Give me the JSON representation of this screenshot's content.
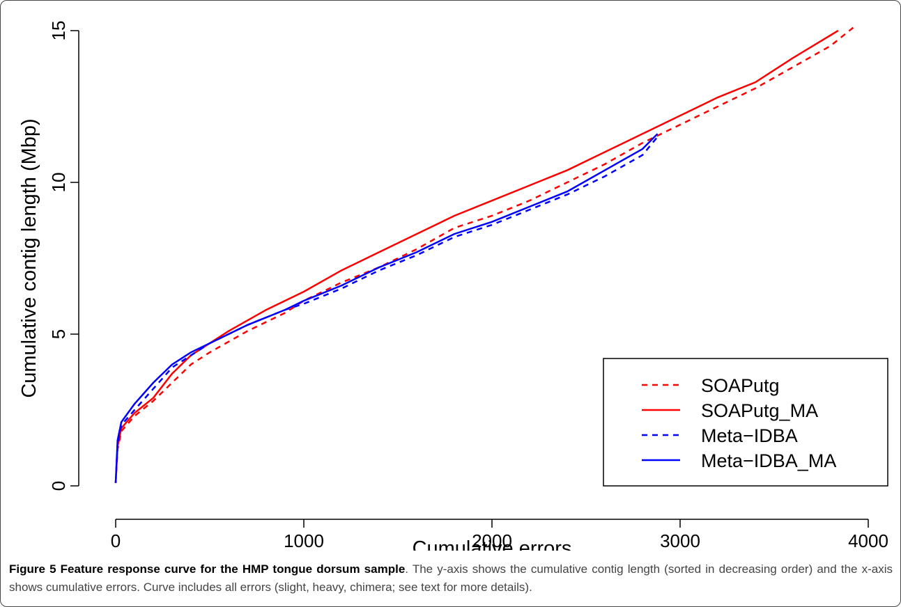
{
  "chart_data": {
    "type": "line",
    "xlabel": "Cumulative errors",
    "ylabel": "Cumulative contig length (Mbp)",
    "xlim": [
      0,
      4000
    ],
    "xticks": [
      0,
      1000,
      2000,
      3000,
      4000
    ],
    "ylim": [
      0,
      15
    ],
    "yticks": [
      0,
      5,
      10,
      15
    ],
    "legend": "bottom-right",
    "series": [
      {
        "name": "SOAPutg",
        "color": "#ff0000",
        "line_style": "dashed",
        "x": [
          0,
          10,
          30,
          100,
          200,
          300,
          400,
          500,
          700,
          900,
          1000,
          1200,
          1400,
          1600,
          1800,
          2000,
          2200,
          2400,
          2600,
          2800,
          3000,
          3200,
          3400,
          3600,
          3800,
          3920
        ],
        "values": [
          0.1,
          1.2,
          1.8,
          2.3,
          2.8,
          3.4,
          4.0,
          4.4,
          5.1,
          5.7,
          6.1,
          6.7,
          7.2,
          7.8,
          8.5,
          8.9,
          9.4,
          10.0,
          10.6,
          11.3,
          11.9,
          12.5,
          13.1,
          13.8,
          14.5,
          15.1
        ]
      },
      {
        "name": "SOAPutg_MA",
        "color": "#ff0000",
        "line_style": "solid",
        "x": [
          0,
          10,
          30,
          100,
          200,
          300,
          400,
          500,
          600,
          800,
          1000,
          1200,
          1400,
          1600,
          1800,
          2000,
          2200,
          2400,
          2600,
          2800,
          3000,
          3200,
          3400,
          3600,
          3840
        ],
        "values": [
          0.1,
          1.3,
          1.9,
          2.4,
          2.9,
          3.7,
          4.3,
          4.7,
          5.1,
          5.8,
          6.4,
          7.1,
          7.7,
          8.3,
          8.9,
          9.4,
          9.9,
          10.4,
          11.0,
          11.6,
          12.2,
          12.8,
          13.3,
          14.1,
          15.0
        ]
      },
      {
        "name": "Meta−IDBA",
        "color": "#0000ff",
        "line_style": "dashed",
        "x": [
          0,
          10,
          30,
          100,
          200,
          300,
          400,
          500,
          700,
          900,
          1000,
          1200,
          1400,
          1600,
          1800,
          2000,
          2200,
          2400,
          2600,
          2800,
          2880
        ],
        "values": [
          0.1,
          1.4,
          2.0,
          2.5,
          3.2,
          3.9,
          4.3,
          4.7,
          5.3,
          5.8,
          6.0,
          6.5,
          7.1,
          7.6,
          8.2,
          8.6,
          9.1,
          9.6,
          10.2,
          10.9,
          11.5
        ]
      },
      {
        "name": "Meta−IDBA_MA",
        "color": "#0000ff",
        "line_style": "solid",
        "x": [
          0,
          10,
          30,
          100,
          200,
          300,
          400,
          500,
          700,
          900,
          1000,
          1200,
          1400,
          1600,
          1800,
          2000,
          2200,
          2400,
          2600,
          2800,
          2880
        ],
        "values": [
          0.1,
          1.5,
          2.1,
          2.7,
          3.4,
          4.0,
          4.4,
          4.7,
          5.3,
          5.8,
          6.1,
          6.6,
          7.2,
          7.7,
          8.3,
          8.7,
          9.2,
          9.7,
          10.4,
          11.1,
          11.6
        ]
      }
    ],
    "caption_title": "Figure 5 Feature response curve for the HMP tongue dorsum sample",
    "caption_text": ". The y-axis shows the cumulative contig length (sorted in decreasing order) and the x-axis shows cumulative errors. Curve includes all errors (slight, heavy, chimera; see text for more details)."
  }
}
